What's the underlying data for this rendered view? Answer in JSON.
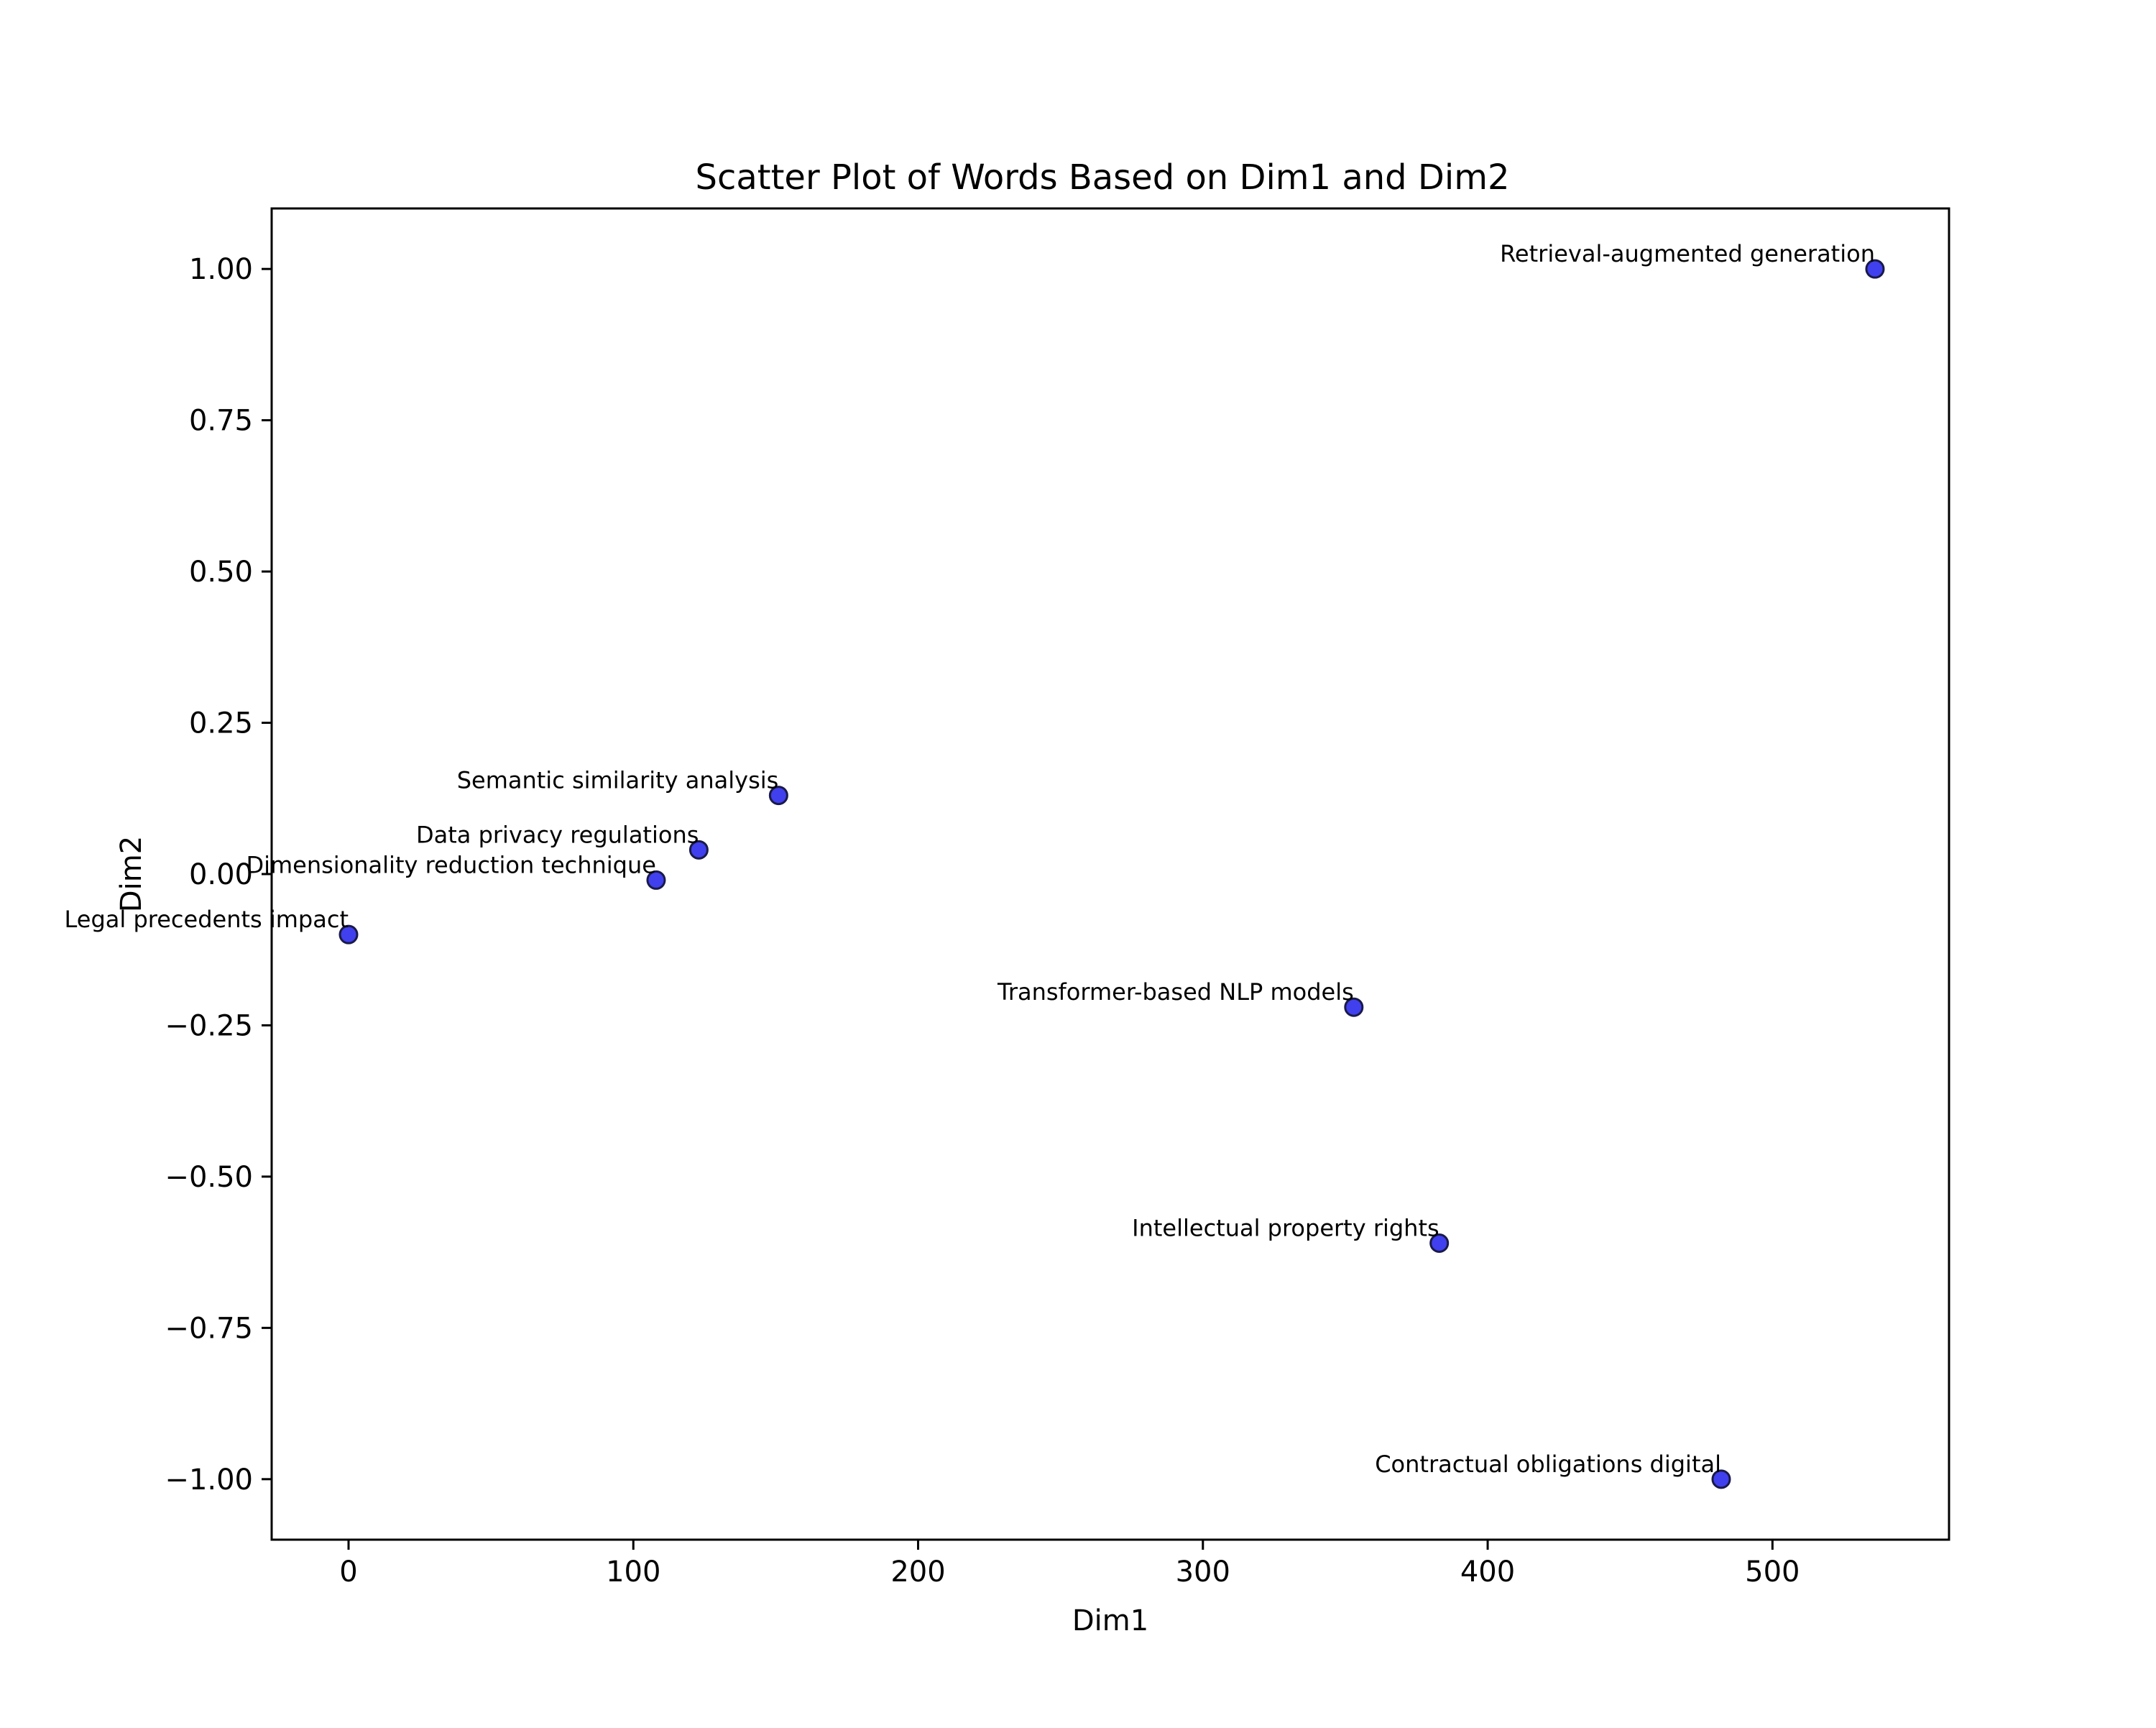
{
  "chart_data": {
    "type": "scatter",
    "title": "Scatter Plot of Words Based on Dim1 and Dim2",
    "xlabel": "Dim1",
    "ylabel": "Dim2",
    "xlim": [
      -27,
      562
    ],
    "ylim": [
      -1.1,
      1.1
    ],
    "xticks": [
      0,
      100,
      200,
      300,
      400,
      500
    ],
    "xtick_labels": [
      "0",
      "100",
      "200",
      "300",
      "400",
      "500"
    ],
    "yticks": [
      1.0,
      0.75,
      0.5,
      0.25,
      0.0,
      -0.25,
      -0.5,
      -0.75,
      -1.0
    ],
    "ytick_labels": [
      "1.00",
      "0.75",
      "0.50",
      "0.25",
      "0.00",
      "−0.25",
      "−0.50",
      "−0.75",
      "−1.00"
    ],
    "grid": false,
    "marker_color": "#4040ee",
    "marker_edge_color": "#1a1a4a",
    "points": [
      {
        "label": "Retrieval-augmented generation",
        "x": 536,
        "y": 1.0
      },
      {
        "label": "Semantic similarity analysis",
        "x": 151,
        "y": 0.13
      },
      {
        "label": "Data privacy regulations",
        "x": 123,
        "y": 0.04
      },
      {
        "label": "Dimensionality reduction technique",
        "x": 108,
        "y": -0.01
      },
      {
        "label": "Legal precedents impact",
        "x": 0,
        "y": -0.1
      },
      {
        "label": "Transformer-based NLP models",
        "x": 353,
        "y": -0.22
      },
      {
        "label": "Intellectual property rights",
        "x": 383,
        "y": -0.61
      },
      {
        "label": "Contractual obligations digital",
        "x": 482,
        "y": -1.0
      }
    ]
  }
}
